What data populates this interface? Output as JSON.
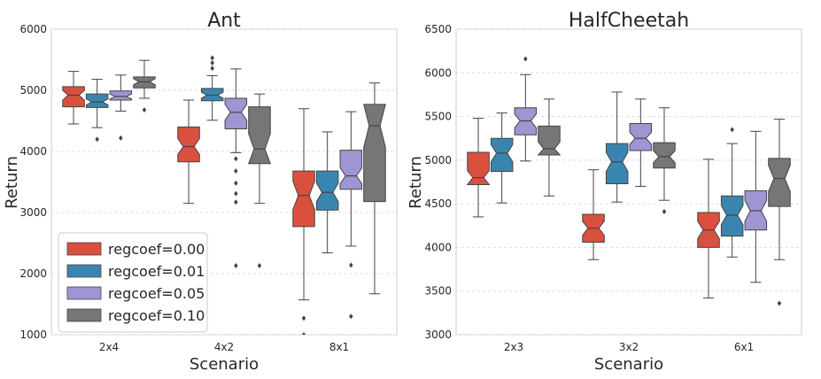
{
  "colors": {
    "regcoef=0.00": "#d9503f",
    "regcoef=0.01": "#3a85b0",
    "regcoef=0.05": "#9d96d3",
    "regcoef=0.10": "#767676",
    "grid": "#dddddd",
    "axis_bg": "#ffffff",
    "box_edge": "#444444"
  },
  "chart_data": [
    {
      "type": "box",
      "title": "Ant",
      "xlabel": "Scenario",
      "ylabel": "Return",
      "ylim": [
        1000,
        6000
      ],
      "yticks": [
        1000,
        2000,
        3000,
        4000,
        5000,
        6000
      ],
      "categories": [
        "2x4",
        "4x2",
        "8x1"
      ],
      "legend": {
        "position": "lower-left",
        "entries": [
          "regcoef=0.00",
          "regcoef=0.01",
          "regcoef=0.05",
          "regcoef=0.10"
        ]
      },
      "series": [
        {
          "name": "regcoef=0.00",
          "boxes": [
            {
              "q1": 4730,
              "median": 4920,
              "q3": 5060,
              "whislo": 4450,
              "whishi": 5310,
              "notch": [
                4840,
                5000
              ],
              "outliers": []
            },
            {
              "q1": 3830,
              "median": 4080,
              "q3": 4400,
              "whislo": 3150,
              "whishi": 4840,
              "notch": [
                3950,
                4210
              ],
              "outliers": []
            },
            {
              "q1": 2770,
              "median": 3280,
              "q3": 3680,
              "whislo": 1570,
              "whishi": 4700,
              "notch": [
                3050,
                3510
              ],
              "outliers": [
                1270,
                1000
              ]
            }
          ]
        },
        {
          "name": "regcoef=0.01",
          "boxes": [
            {
              "q1": 4720,
              "median": 4810,
              "q3": 4940,
              "whislo": 4390,
              "whishi": 5180,
              "notch": [
                4760,
                4860
              ],
              "outliers": [
                4200
              ]
            },
            {
              "q1": 4830,
              "median": 4920,
              "q3": 5030,
              "whislo": 4510,
              "whishi": 5240,
              "notch": [
                4870,
                4970
              ],
              "outliers": [
                5360,
                5450,
                5530
              ]
            },
            {
              "q1": 3040,
              "median": 3330,
              "q3": 3680,
              "whislo": 2340,
              "whishi": 4320,
              "notch": [
                3180,
                3480
              ],
              "outliers": []
            }
          ]
        },
        {
          "name": "regcoef=0.05",
          "boxes": [
            {
              "q1": 4840,
              "median": 4900,
              "q3": 4990,
              "whislo": 4660,
              "whishi": 5250,
              "notch": [
                4860,
                4940
              ],
              "outliers": [
                4220
              ]
            },
            {
              "q1": 4370,
              "median": 4640,
              "q3": 4870,
              "whislo": 3980,
              "whishi": 5350,
              "notch": [
                4510,
                4770
              ],
              "outliers": [
                3880,
                3680,
                3480,
                3310,
                3170,
                2130
              ]
            },
            {
              "q1": 3380,
              "median": 3600,
              "q3": 4020,
              "whislo": 2450,
              "whishi": 4650,
              "notch": [
                3470,
                3730
              ],
              "outliers": [
                2140,
                1300
              ]
            }
          ]
        },
        {
          "name": "regcoef=0.10",
          "boxes": [
            {
              "q1": 5040,
              "median": 5140,
              "q3": 5220,
              "whislo": 4870,
              "whishi": 5490,
              "notch": [
                5090,
                5190
              ],
              "outliers": [
                4680
              ]
            },
            {
              "q1": 3800,
              "median": 4040,
              "q3": 4730,
              "whislo": 3150,
              "whishi": 4940,
              "notch": [
                3790,
                4290
              ],
              "outliers": [
                2130
              ]
            },
            {
              "q1": 3180,
              "median": 4420,
              "q3": 4770,
              "whislo": 1670,
              "whishi": 5120,
              "notch": [
                4070,
                4770
              ],
              "outliers": []
            }
          ]
        }
      ]
    },
    {
      "type": "box",
      "title": "HalfCheetah",
      "xlabel": "Scenario",
      "ylabel": "Return",
      "ylim": [
        3000,
        6500
      ],
      "yticks": [
        3000,
        3500,
        4000,
        4500,
        5000,
        5500,
        6000,
        6500
      ],
      "categories": [
        "2x3",
        "3x2",
        "6x1"
      ],
      "series": [
        {
          "name": "regcoef=0.00",
          "boxes": [
            {
              "q1": 4720,
              "median": 4800,
              "q3": 5090,
              "whislo": 4350,
              "whishi": 5480,
              "notch": [
                4720,
                4880
              ],
              "outliers": []
            },
            {
              "q1": 4060,
              "median": 4220,
              "q3": 4380,
              "whislo": 3860,
              "whishi": 4890,
              "notch": [
                4140,
                4300
              ],
              "outliers": []
            },
            {
              "q1": 4000,
              "median": 4200,
              "q3": 4400,
              "whislo": 3420,
              "whishi": 5010,
              "notch": [
                4100,
                4300
              ],
              "outliers": []
            }
          ]
        },
        {
          "name": "regcoef=0.01",
          "boxes": [
            {
              "q1": 4870,
              "median": 5080,
              "q3": 5250,
              "whislo": 4510,
              "whishi": 5540,
              "notch": [
                4980,
                5180
              ],
              "outliers": []
            },
            {
              "q1": 4730,
              "median": 4980,
              "q3": 5190,
              "whislo": 4520,
              "whishi": 5780,
              "notch": [
                4870,
                5090
              ],
              "outliers": []
            },
            {
              "q1": 4130,
              "median": 4370,
              "q3": 4590,
              "whislo": 3890,
              "whishi": 5190,
              "notch": [
                4260,
                4480
              ],
              "outliers": [
                5350
              ]
            }
          ]
        },
        {
          "name": "regcoef=0.05",
          "boxes": [
            {
              "q1": 5290,
              "median": 5450,
              "q3": 5600,
              "whislo": 4990,
              "whishi": 5980,
              "notch": [
                5370,
                5530
              ],
              "outliers": [
                6160
              ]
            },
            {
              "q1": 5110,
              "median": 5250,
              "q3": 5420,
              "whislo": 4700,
              "whishi": 5700,
              "notch": [
                5180,
                5320
              ],
              "outliers": []
            },
            {
              "q1": 4200,
              "median": 4420,
              "q3": 4650,
              "whislo": 3600,
              "whishi": 5330,
              "notch": [
                4300,
                4540
              ],
              "outliers": []
            }
          ]
        },
        {
          "name": "regcoef=0.10",
          "boxes": [
            {
              "q1": 5060,
              "median": 5130,
              "q3": 5390,
              "whislo": 4590,
              "whishi": 5700,
              "notch": [
                5050,
                5210
              ],
              "outliers": []
            },
            {
              "q1": 4910,
              "median": 5040,
              "q3": 5200,
              "whislo": 4540,
              "whishi": 5600,
              "notch": [
                4970,
                5110
              ],
              "outliers": [
                4410
              ]
            },
            {
              "q1": 4470,
              "median": 4790,
              "q3": 5020,
              "whislo": 3860,
              "whishi": 5470,
              "notch": [
                4640,
                4940
              ],
              "outliers": [
                3360
              ]
            }
          ]
        }
      ]
    }
  ]
}
